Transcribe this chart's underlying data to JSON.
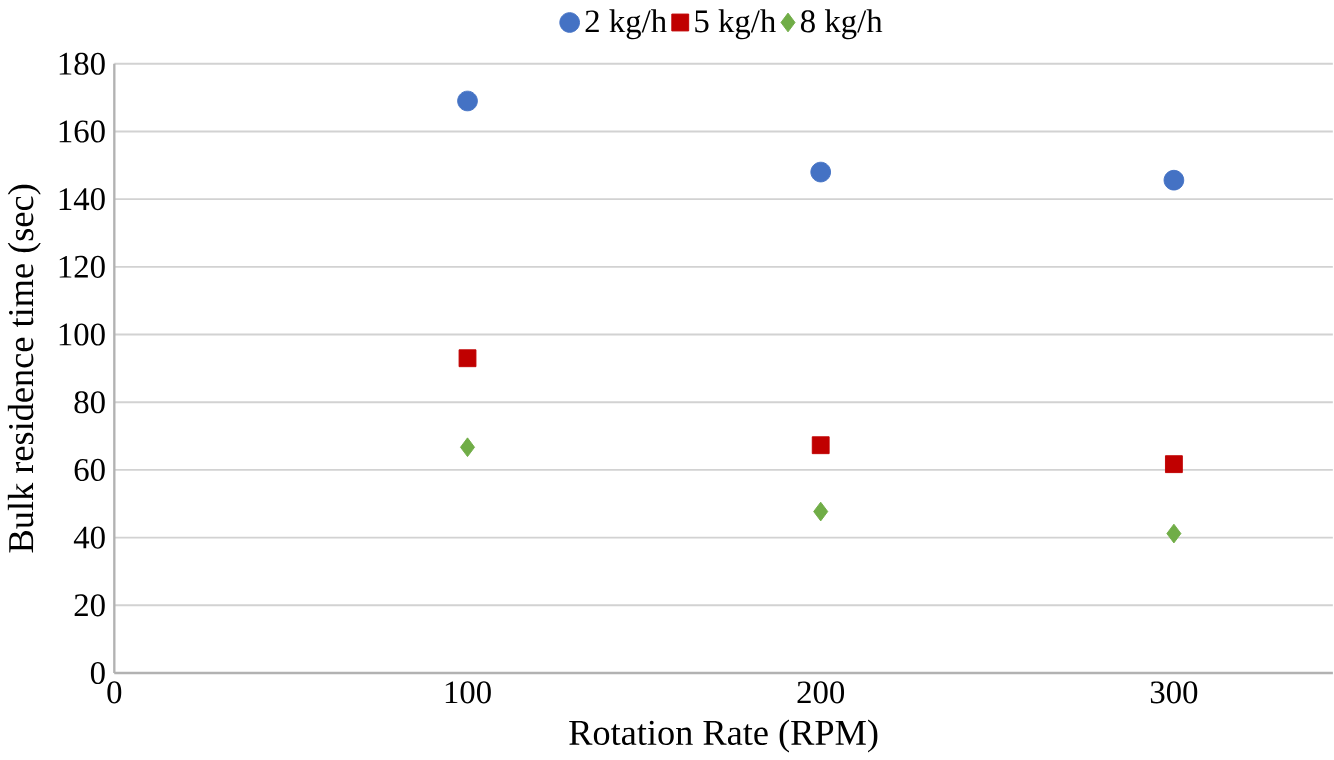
{
  "chart_data": {
    "type": "scatter",
    "xlabel": "Rotation Rate (RPM)",
    "ylabel": "Bulk residence time (sec)",
    "x": [
      100,
      200,
      300
    ],
    "series": [
      {
        "name": "2 kg/h",
        "color": "#4472c4",
        "marker": "circle",
        "values": [
          169,
          148,
          145.6
        ]
      },
      {
        "name": "5 kg/h",
        "color": "#c00000",
        "marker": "square",
        "values": [
          93,
          67.3,
          61.7
        ]
      },
      {
        "name": "8 kg/h",
        "color": "#70ad47",
        "marker": "diamond",
        "values": [
          66.7,
          47.7,
          41.2
        ]
      }
    ],
    "xlim": [
      0,
      345
    ],
    "xticks": [
      0,
      100,
      200,
      300
    ],
    "ylim": [
      0,
      180
    ],
    "yticks": [
      0,
      20,
      40,
      60,
      80,
      100,
      120,
      140,
      160,
      180
    ],
    "grid": "y",
    "legend": "top"
  }
}
